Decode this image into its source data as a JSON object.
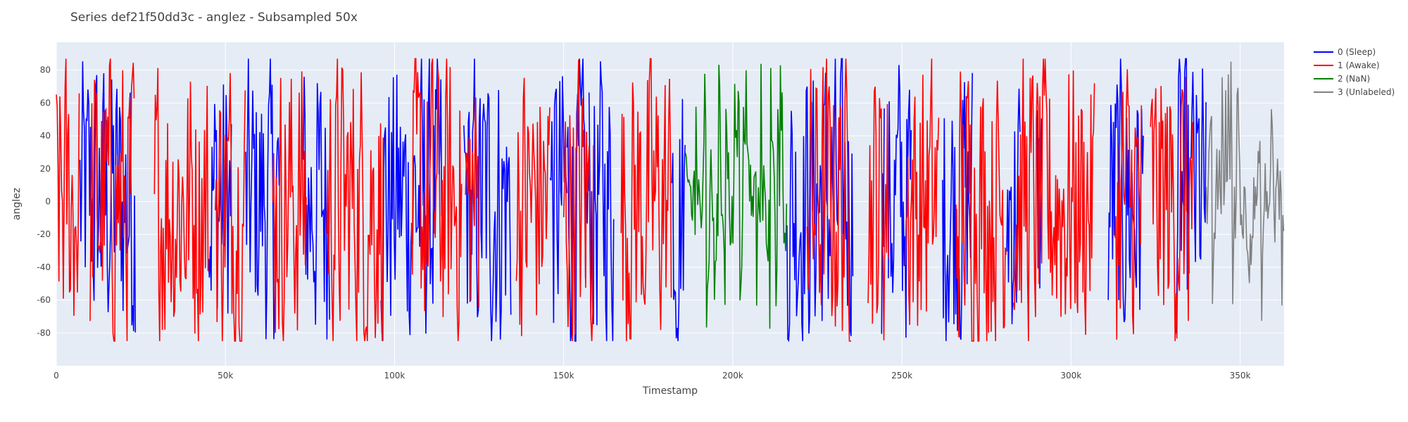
{
  "chart_data": {
    "type": "line",
    "title": "Series def21f50dd3c - anglez - Subsampled 50x",
    "xlabel": "Timestamp",
    "ylabel": "anglez",
    "xlim": [
      0,
      363000
    ],
    "ylim": [
      -100,
      97
    ],
    "grid": true,
    "plot_background": "#E5ECF6",
    "legend_position": "top-right outside",
    "x_ticks": [
      {
        "value": 0,
        "label": "0"
      },
      {
        "value": 50000,
        "label": "50k"
      },
      {
        "value": 100000,
        "label": "100k"
      },
      {
        "value": 150000,
        "label": "150k"
      },
      {
        "value": 200000,
        "label": "200k"
      },
      {
        "value": 250000,
        "label": "250k"
      },
      {
        "value": 300000,
        "label": "300k"
      },
      {
        "value": 350000,
        "label": "350k"
      }
    ],
    "y_ticks": [
      {
        "value": 80,
        "label": "80"
      },
      {
        "value": 60,
        "label": "60"
      },
      {
        "value": 40,
        "label": "40"
      },
      {
        "value": 20,
        "label": "20"
      },
      {
        "value": 0,
        "label": "0"
      },
      {
        "value": -20,
        "label": "-20"
      },
      {
        "value": -40,
        "label": "-40"
      },
      {
        "value": -60,
        "label": "-60"
      },
      {
        "value": -80,
        "label": "-80"
      }
    ],
    "series": [
      {
        "name": "0 (Sleep)",
        "color": "#0000FF",
        "segments": [
          [
            7000,
            23500
          ],
          [
            45000,
            52000
          ],
          [
            56000,
            66000
          ],
          [
            73000,
            81000
          ],
          [
            96000,
            114000
          ],
          [
            120500,
            124000
          ],
          [
            124000,
            134500
          ],
          [
            146000,
            151000
          ],
          [
            151000,
            157500
          ],
          [
            157500,
            165000
          ],
          [
            182000,
            186000
          ],
          [
            216000,
            235500
          ],
          [
            244000,
            245000
          ],
          [
            246000,
            253000
          ],
          [
            262000,
            271000
          ],
          [
            281000,
            285000
          ],
          [
            291500,
            290000
          ],
          [
            311000,
            321500
          ],
          [
            331000,
            335000
          ],
          [
            335500,
            340000
          ]
        ],
        "amplitude": [
          -85,
          87
        ],
        "center": [
          -10,
          10
        ]
      },
      {
        "name": "1 (Awake)",
        "color": "#FF0000",
        "segments": [
          [
            0,
            7000
          ],
          [
            10000,
            23000
          ],
          [
            29000,
            45000
          ],
          [
            47000,
            56000
          ],
          [
            64000,
            74000
          ],
          [
            80000,
            97000
          ],
          [
            105000,
            120000
          ],
          [
            121000,
            125000
          ],
          [
            136000,
            146000
          ],
          [
            150000,
            159000
          ],
          [
            167000,
            182000
          ],
          [
            222000,
            235000
          ],
          [
            240000,
            246000
          ],
          [
            251000,
            261000
          ],
          [
            266000,
            281000
          ],
          [
            283000,
            307000
          ],
          [
            313000,
            321000
          ],
          [
            323500,
            336000
          ]
        ],
        "amplitude": [
          -85,
          87
        ],
        "center": [
          -5,
          15
        ]
      },
      {
        "name": "2 (NaN)",
        "color": "#008000",
        "segments": [
          [
            186000,
            216000
          ]
        ],
        "amplitude": [
          -90,
          86
        ],
        "center": [
          0,
          0
        ]
      },
      {
        "name": "3 (Unlabeled)",
        "color": "#808080",
        "segments": [
          [
            340000,
            363000
          ]
        ],
        "amplitude": [
          -89,
          87
        ],
        "center": [
          0,
          0
        ]
      }
    ],
    "series_note": "Dense noisy anglez oscillation; segments give approximate timestamp ranges colored by label"
  },
  "legend": [
    {
      "label": "0 (Sleep)",
      "color": "#0000FF"
    },
    {
      "label": "1 (Awake)",
      "color": "#FF0000"
    },
    {
      "label": "2 (NaN)",
      "color": "#008000"
    },
    {
      "label": "3 (Unlabeled)",
      "color": "#808080"
    }
  ]
}
